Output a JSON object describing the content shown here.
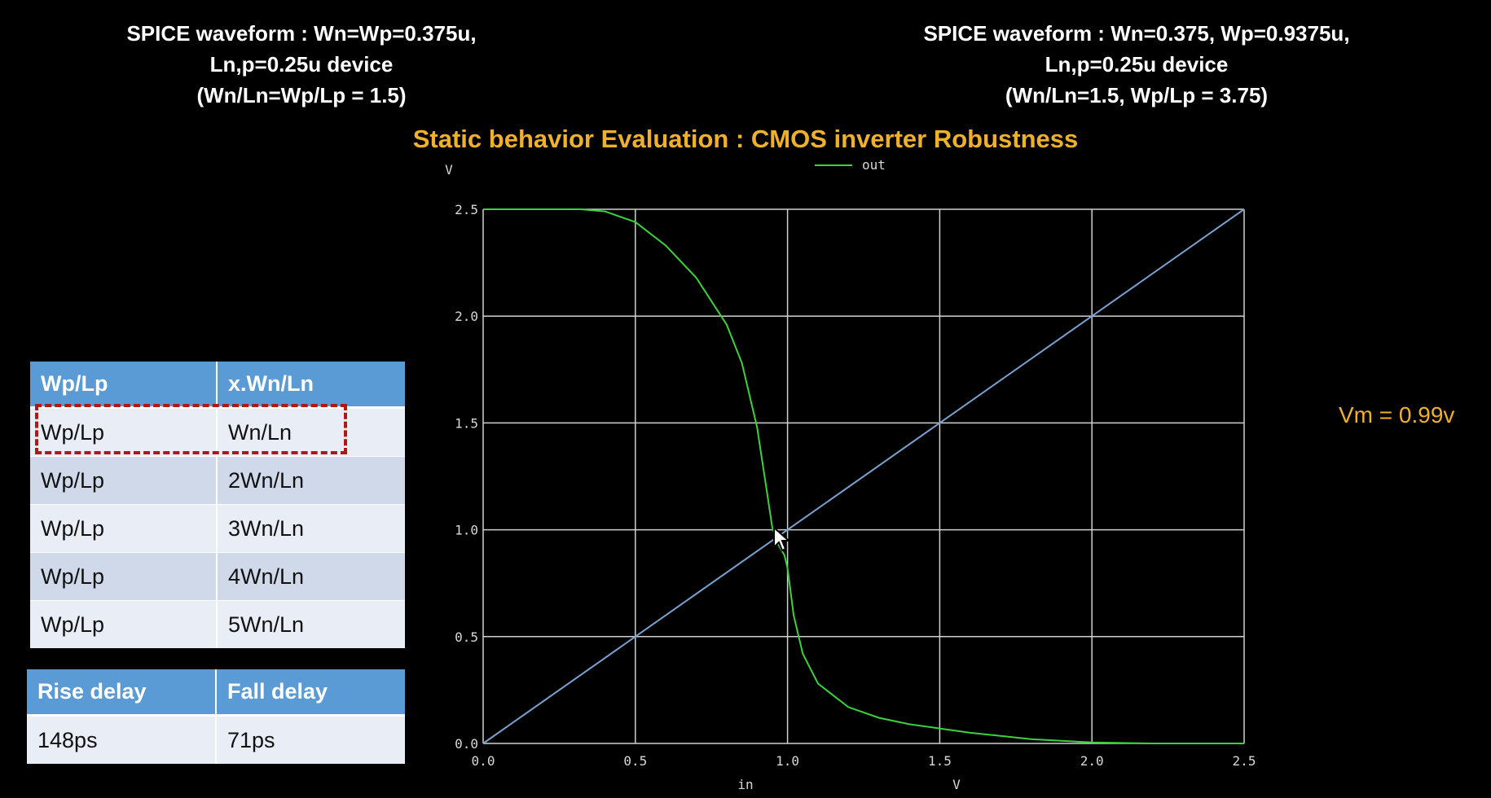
{
  "header_left": {
    "line1": "SPICE waveform : Wn=Wp=0.375u,",
    "line2": "Ln,p=0.25u device",
    "line3": "(Wn/Ln=Wp/Lp = 1.5)"
  },
  "header_right": {
    "line1": "SPICE waveform : Wn=0.375, Wp=0.9375u,",
    "line2": "Ln,p=0.25u device",
    "line3": "(Wn/Ln=1.5, Wp/Lp = 3.75)"
  },
  "main_title": "Static behavior Evaluation : CMOS inverter Robustness",
  "vm_label": "Vm = 0.99v",
  "size_table": {
    "headers": [
      "Wp/Lp",
      "x.Wn/Ln"
    ],
    "rows": [
      [
        "Wp/Lp",
        "Wn/Ln"
      ],
      [
        "Wp/Lp",
        "2Wn/Ln"
      ],
      [
        "Wp/Lp",
        "3Wn/Ln"
      ],
      [
        "Wp/Lp",
        "4Wn/Ln"
      ],
      [
        "Wp/Lp",
        "5Wn/Ln"
      ]
    ],
    "highlighted_row": 0
  },
  "delay_table": {
    "headers": [
      "Rise delay",
      "Fall delay"
    ],
    "rows": [
      [
        "148ps",
        "71ps"
      ]
    ]
  },
  "chart_data": {
    "type": "line",
    "title": "",
    "xlabel": "in",
    "xunit": "V",
    "yunit": "V",
    "xlim": [
      0,
      2.5
    ],
    "ylim": [
      0,
      2.5
    ],
    "xticks": [
      0.0,
      0.5,
      1.0,
      1.5,
      2.0,
      2.5
    ],
    "yticks": [
      0.0,
      0.5,
      1.0,
      1.5,
      2.0,
      2.5
    ],
    "xtick_labels": [
      "0.0",
      "0.5",
      "1.0",
      "1.5",
      "2.0",
      "2.5"
    ],
    "ytick_labels": [
      "0.0",
      "0.5",
      "1.0",
      "1.5",
      "2.0",
      "2.5"
    ],
    "grid": true,
    "legend": "top-center",
    "series": [
      {
        "name": "out",
        "color": "#3cd23c",
        "x": [
          0,
          0.2,
          0.32,
          0.4,
          0.5,
          0.6,
          0.7,
          0.8,
          0.85,
          0.9,
          0.93,
          0.95,
          0.97,
          0.99,
          1.0,
          1.02,
          1.05,
          1.1,
          1.2,
          1.3,
          1.4,
          1.5,
          1.6,
          1.7,
          1.8,
          2.0,
          2.2,
          2.5
        ],
        "y": [
          2.5,
          2.5,
          2.5,
          2.49,
          2.44,
          2.33,
          2.18,
          1.96,
          1.78,
          1.48,
          1.2,
          1.01,
          0.93,
          0.88,
          0.82,
          0.6,
          0.42,
          0.28,
          0.17,
          0.12,
          0.09,
          0.07,
          0.05,
          0.035,
          0.02,
          0.005,
          0.0,
          0.0
        ]
      },
      {
        "name": "",
        "color": "#7aa0cf",
        "x": [
          0,
          2.5
        ],
        "y": [
          0,
          2.5
        ]
      }
    ]
  }
}
